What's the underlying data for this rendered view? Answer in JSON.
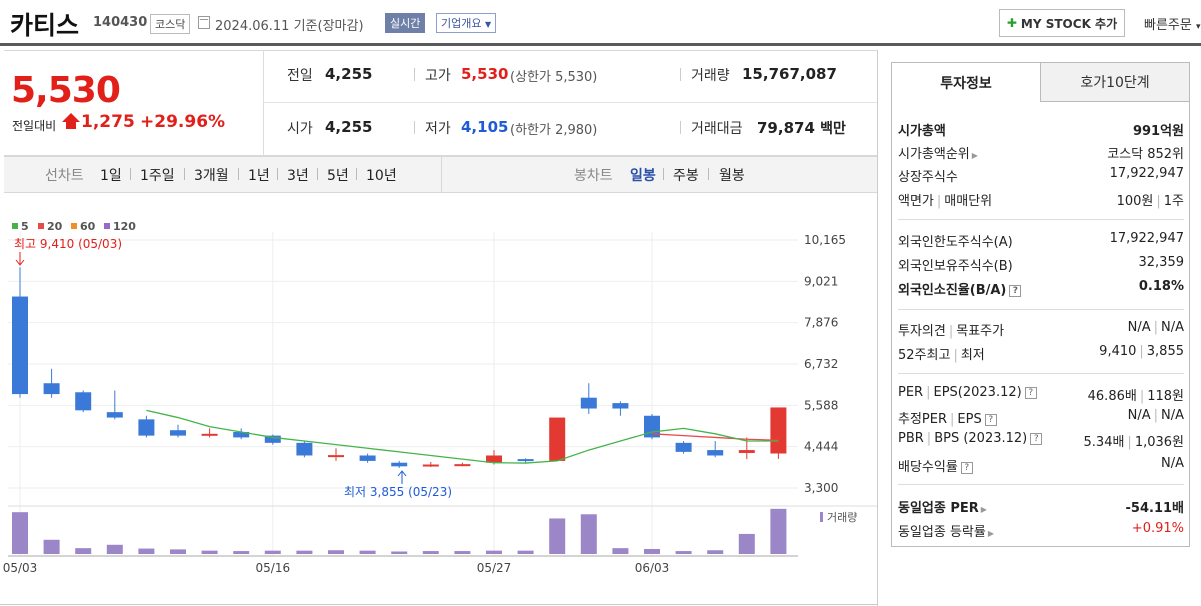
{
  "header": {
    "name": "카티스",
    "code": "140430",
    "market": "코스닥",
    "date": "2024.06.11",
    "basis": "기준(장마감)",
    "realtime": "실시간",
    "company_info": "기업개요",
    "mystock": "MY STOCK 추가",
    "quick_order": "빠른주문"
  },
  "price": {
    "current": "5,530",
    "prev_label": "전일대비",
    "change": "1,275",
    "change_pct": "+29.96%"
  },
  "quote": {
    "prev_close_label": "전일",
    "prev_close": "4,255",
    "high_label": "고가",
    "high": "5,530",
    "upper_limit": "(상한가 5,530)",
    "volume_label": "거래량",
    "volume": "15,767,087",
    "open_label": "시가",
    "open": "4,255",
    "low_label": "저가",
    "low": "4,105",
    "lower_limit": "(하한가 2,980)",
    "amount_label": "거래대금",
    "amount": "79,874",
    "amount_unit": "백만"
  },
  "tabs": {
    "line_label": "선차트",
    "periods": [
      "1일",
      "1주일",
      "3개월",
      "1년",
      "3년",
      "5년",
      "10년"
    ],
    "candle_label": "봉차트",
    "candle_periods": [
      "일봉",
      "주봉",
      "월봉"
    ],
    "active_candle": "일봉"
  },
  "chart_data": {
    "type": "candlestick",
    "legend": [
      {
        "name": "5",
        "color": "#44b44a"
      },
      {
        "name": "20",
        "color": "#e84a4a"
      },
      {
        "name": "60",
        "color": "#f0902a"
      },
      {
        "name": "120",
        "color": "#9a6ac8"
      }
    ],
    "y_ticks": [
      "10,165",
      "9,021",
      "7,876",
      "6,732",
      "5,588",
      "4,444",
      "3,300"
    ],
    "ylim": [
      3300,
      10165
    ],
    "x_labels": [
      {
        "label": "05/03",
        "index": 0
      },
      {
        "label": "05/16",
        "index": 8
      },
      {
        "label": "05/27",
        "index": 15
      },
      {
        "label": "06/03",
        "index": 20
      }
    ],
    "high_annotation": "최고 9,410 (05/03)",
    "low_annotation": "최저 3,855 (05/23)",
    "volume_label": "거래량",
    "candles": [
      {
        "o": 8600,
        "c": 5900,
        "h": 9410,
        "l": 5800
      },
      {
        "o": 6200,
        "c": 5900,
        "h": 6600,
        "l": 5800
      },
      {
        "o": 5950,
        "c": 5450,
        "h": 6000,
        "l": 5400
      },
      {
        "o": 5400,
        "c": 5250,
        "h": 6000,
        "l": 5200
      },
      {
        "o": 5200,
        "c": 4750,
        "h": 5300,
        "l": 4700
      },
      {
        "o": 4900,
        "c": 4750,
        "h": 5050,
        "l": 4700
      },
      {
        "o": 4780,
        "c": 4800,
        "h": 4950,
        "l": 4700
      },
      {
        "o": 4850,
        "c": 4700,
        "h": 4950,
        "l": 4650
      },
      {
        "o": 4750,
        "c": 4550,
        "h": 4780,
        "l": 4500
      },
      {
        "o": 4550,
        "c": 4200,
        "h": 4600,
        "l": 4150
      },
      {
        "o": 4200,
        "c": 4210,
        "h": 4400,
        "l": 4050
      },
      {
        "o": 4200,
        "c": 4050,
        "h": 4250,
        "l": 4000
      },
      {
        "o": 4000,
        "c": 3900,
        "h": 4050,
        "l": 3855
      },
      {
        "o": 3940,
        "c": 3950,
        "h": 4020,
        "l": 3880
      },
      {
        "o": 3950,
        "c": 3960,
        "h": 4000,
        "l": 3900
      },
      {
        "o": 4000,
        "c": 4200,
        "h": 4350,
        "l": 3950
      },
      {
        "o": 4100,
        "c": 4050,
        "h": 4120,
        "l": 4000
      },
      {
        "o": 4050,
        "c": 5250,
        "h": 5250,
        "l": 4050
      },
      {
        "o": 5800,
        "c": 5500,
        "h": 6200,
        "l": 5350
      },
      {
        "o": 5650,
        "c": 5500,
        "h": 5700,
        "l": 5300
      },
      {
        "o": 5300,
        "c": 4700,
        "h": 5350,
        "l": 4650
      },
      {
        "o": 4550,
        "c": 4300,
        "h": 4600,
        "l": 4250
      },
      {
        "o": 4350,
        "c": 4200,
        "h": 4600,
        "l": 4150
      },
      {
        "o": 4270,
        "c": 4350,
        "h": 4700,
        "l": 4100
      },
      {
        "o": 4255,
        "c": 5530,
        "h": 5530,
        "l": 4105
      }
    ],
    "ma5": [
      null,
      null,
      null,
      null,
      5450,
      5250,
      5000,
      4850,
      4700,
      4600,
      4500,
      4400,
      4300,
      4200,
      4100,
      4000,
      3990,
      4050,
      4350,
      4600,
      4850,
      4950,
      4800,
      4600,
      4600
    ],
    "ma20": [
      null,
      null,
      null,
      null,
      null,
      null,
      null,
      null,
      null,
      null,
      null,
      null,
      null,
      null,
      null,
      null,
      null,
      null,
      null,
      null,
      4800,
      4750,
      4700,
      4650,
      4620
    ],
    "volume": [
      100,
      34,
      14,
      22,
      13,
      11,
      8,
      7,
      8,
      8,
      9,
      8,
      6,
      7,
      7,
      8,
      8,
      85,
      95,
      14,
      12,
      7,
      9,
      48,
      108
    ]
  },
  "right_panel": {
    "tab1": "투자정보",
    "tab2": "호가10단계",
    "rows": [
      {
        "k": "시가총액",
        "v": "991억원",
        "bold": true
      },
      {
        "k": "시가총액순위",
        "v": "코스닥 852위",
        "tri": true
      },
      {
        "k": "상장주식수",
        "v": "17,922,947"
      },
      {
        "k": "액면가",
        "k2": "매매단위",
        "v": "100원",
        "v2": "1주"
      },
      {
        "k": "외국인한도주식수(A)",
        "v": "17,922,947"
      },
      {
        "k": "외국인보유주식수(B)",
        "v": "32,359"
      },
      {
        "k": "외국인소진율(B/A)",
        "v": "0.18%",
        "bold": true,
        "q": true
      },
      {
        "k": "투자의견",
        "k2": "목표주가",
        "v": "N/A",
        "v2": "N/A"
      },
      {
        "k": "52주최고",
        "k2": "최저",
        "v": "9,410",
        "v2": "3,855"
      },
      {
        "k": "PER",
        "k2": "EPS(2023.12)",
        "v": "46.86배",
        "v2": "118원",
        "q": true
      },
      {
        "k": "추정PER",
        "k2": "EPS",
        "v": "N/A",
        "v2": "N/A",
        "q": true
      },
      {
        "k": "PBR",
        "k2": "BPS (2023.12)",
        "v": "5.34배",
        "v2": "1,036원",
        "q": true
      },
      {
        "k": "배당수익률",
        "v": "N/A",
        "q": true
      },
      {
        "k": "동일업종 PER",
        "v": "-54.11배",
        "bold": true,
        "tri": true
      },
      {
        "k": "동일업종 등락률",
        "v": "+0.91%",
        "tri": true,
        "red": true
      }
    ]
  }
}
